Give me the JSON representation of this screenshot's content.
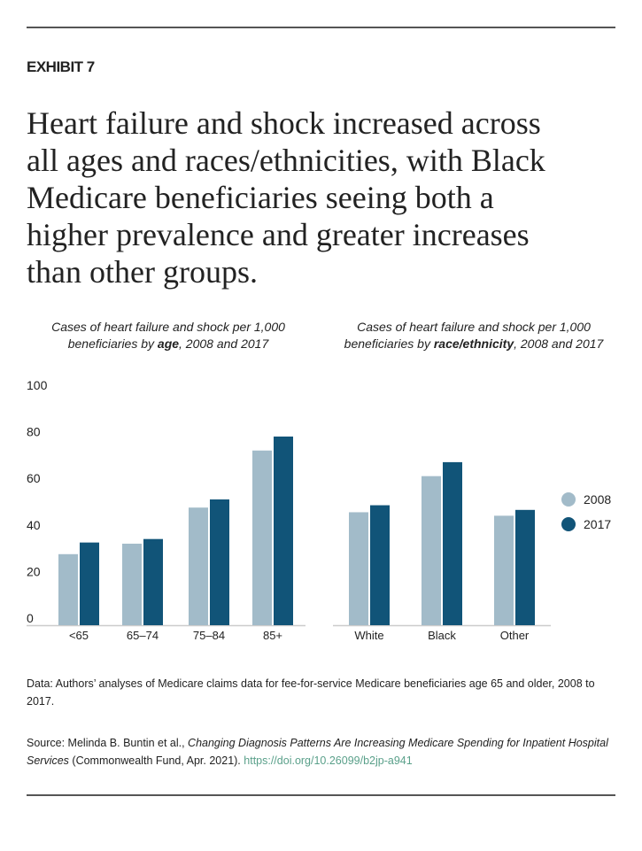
{
  "header": {
    "exhibit": "EXHIBIT 7",
    "title_lines": [
      "Heart failure and shock increased across",
      "all ages and races/ethnicities, with Black",
      "Medicare beneficiaries seeing both a",
      "higher prevalence and greater increases",
      "than other groups."
    ]
  },
  "colors": {
    "2008": "#a2bbc9",
    "2017": "#115478",
    "axis": "#cccccc",
    "link": "#5aa08a"
  },
  "chart_data": [
    {
      "type": "bar",
      "subtitle": {
        "line1": "Cases of heart failure and shock per 1,000",
        "line2_pre": "beneficiaries by ",
        "line2_bold": "age",
        "line2_post": ", 2008 and 2017"
      },
      "categories": [
        "<65",
        "65–74",
        "75–84",
        "85+"
      ],
      "series": [
        {
          "name": "2008",
          "values": [
            30.5,
            35,
            50.5,
            75
          ]
        },
        {
          "name": "2017",
          "values": [
            35.5,
            37,
            54,
            81
          ]
        }
      ],
      "ylim": [
        0,
        100
      ],
      "yticks": [
        "0",
        "20",
        "40",
        "60",
        "80",
        "100"
      ],
      "grid": false
    },
    {
      "type": "bar",
      "subtitle": {
        "line1": "Cases of heart failure and shock per 1,000",
        "line2_pre": "beneficiaries by ",
        "line2_bold": "race/ethnicity",
        "line2_post": ", 2008 and 2017"
      },
      "categories": [
        "White",
        "Black",
        "Other"
      ],
      "series": [
        {
          "name": "2008",
          "values": [
            48.5,
            64,
            47
          ]
        },
        {
          "name": "2017",
          "values": [
            51.5,
            70,
            49.5
          ]
        }
      ],
      "ylim": [
        0,
        100
      ],
      "grid": false,
      "legend_placement": "right"
    }
  ],
  "legend": [
    {
      "label": "2008"
    },
    {
      "label": "2017"
    }
  ],
  "notes": {
    "data": "Data: Authors’ analyses of Medicare claims data for fee-for-service Medicare beneficiaries age 65 and older, 2008 to 2017.",
    "source_pre": "Source: Melinda B. Buntin et al., ",
    "source_title": "Changing Diagnosis Patterns Are Increasing Medicare Spending for Inpatient Hospital Services",
    "source_post": " (Commonwealth Fund, Apr. 2021). ",
    "source_link": "https://doi.org/10.26099/b2jp-a941"
  }
}
